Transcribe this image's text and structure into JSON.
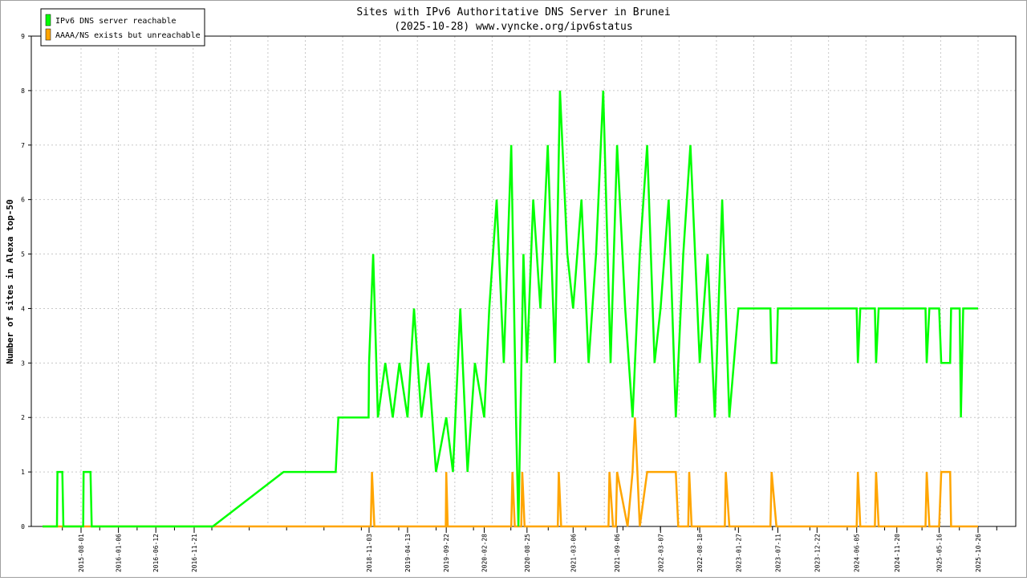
{
  "chart_data": {
    "type": "line",
    "title": "Sites with IPv6 Authoritative DNS Server in Brunei",
    "subtitle": "(2025-10-28) www.vyncke.org/ipv6status",
    "ylabel": "Number of sites in Alexa top-50",
    "ylim": [
      0,
      9
    ],
    "yticks": [
      "0",
      "1",
      "2",
      "3",
      "4",
      "5",
      "6",
      "7",
      "8",
      "9"
    ],
    "x_ticks": [
      "2015-08-01",
      "2016-01-06",
      "2016-06-12",
      "2016-11-21",
      "2018-11-03",
      "2019-04-13",
      "2019-09-22",
      "2020-02-28",
      "2020-08-25",
      "2021-03-06",
      "2021-09-06",
      "2022-03-07",
      "2022-08-18",
      "2023-01-27",
      "2023-07-11",
      "2023-12-22",
      "2024-06-05",
      "2024-11-20",
      "2025-05-16",
      "2025-10-26"
    ],
    "grid": true,
    "legend_position": "top-left",
    "series": [
      {
        "name": "IPv6 DNS server reachable",
        "color": "#00ff00",
        "points": [
          [
            "2015-02-01",
            0
          ],
          [
            "2015-04-10",
            0
          ],
          [
            "2015-04-12",
            1
          ],
          [
            "2015-05-05",
            1
          ],
          [
            "2015-05-10",
            0
          ],
          [
            "2015-08-10",
            0
          ],
          [
            "2015-08-12",
            1
          ],
          [
            "2015-09-10",
            1
          ],
          [
            "2015-09-15",
            0
          ],
          [
            "2017-02-05",
            0
          ],
          [
            "2017-11-20",
            1
          ],
          [
            "2018-06-20",
            1
          ],
          [
            "2018-07-01",
            2
          ],
          [
            "2018-11-01",
            2
          ],
          [
            "2018-11-03",
            3
          ],
          [
            "2018-11-20",
            5
          ],
          [
            "2018-12-10",
            2
          ],
          [
            "2019-01-10",
            3
          ],
          [
            "2019-02-10",
            2
          ],
          [
            "2019-03-10",
            3
          ],
          [
            "2019-04-13",
            2
          ],
          [
            "2019-05-10",
            4
          ],
          [
            "2019-06-10",
            2
          ],
          [
            "2019-07-10",
            3
          ],
          [
            "2019-08-10",
            1
          ],
          [
            "2019-09-22",
            2
          ],
          [
            "2019-10-20",
            1
          ],
          [
            "2019-11-20",
            4
          ],
          [
            "2019-12-20",
            1
          ],
          [
            "2020-01-20",
            3
          ],
          [
            "2020-02-28",
            2
          ],
          [
            "2020-03-20",
            4
          ],
          [
            "2020-04-20",
            6
          ],
          [
            "2020-05-20",
            3
          ],
          [
            "2020-06-20",
            7
          ],
          [
            "2020-07-10",
            2
          ],
          [
            "2020-07-20",
            0
          ],
          [
            "2020-08-10",
            5
          ],
          [
            "2020-08-25",
            3
          ],
          [
            "2020-09-20",
            6
          ],
          [
            "2020-10-20",
            4
          ],
          [
            "2020-11-20",
            7
          ],
          [
            "2020-12-20",
            3
          ],
          [
            "2021-01-10",
            8
          ],
          [
            "2021-02-10",
            5
          ],
          [
            "2021-03-06",
            4
          ],
          [
            "2021-04-10",
            6
          ],
          [
            "2021-05-10",
            3
          ],
          [
            "2021-06-10",
            5
          ],
          [
            "2021-07-10",
            8
          ],
          [
            "2021-08-10",
            3
          ],
          [
            "2021-09-06",
            7
          ],
          [
            "2021-10-10",
            4
          ],
          [
            "2021-11-10",
            2
          ],
          [
            "2021-12-10",
            5
          ],
          [
            "2022-01-10",
            7
          ],
          [
            "2022-02-10",
            3
          ],
          [
            "2022-03-07",
            4
          ],
          [
            "2022-04-10",
            6
          ],
          [
            "2022-05-10",
            2
          ],
          [
            "2022-06-10",
            5
          ],
          [
            "2022-07-10",
            7
          ],
          [
            "2022-08-18",
            3
          ],
          [
            "2022-09-20",
            5
          ],
          [
            "2022-10-20",
            2
          ],
          [
            "2022-11-20",
            6
          ],
          [
            "2022-12-20",
            2
          ],
          [
            "2023-01-27",
            4
          ],
          [
            "2023-06-10",
            4
          ],
          [
            "2023-06-15",
            3
          ],
          [
            "2023-07-05",
            3
          ],
          [
            "2023-07-11",
            4
          ],
          [
            "2024-06-05",
            4
          ],
          [
            "2024-06-10",
            3
          ],
          [
            "2024-06-20",
            4
          ],
          [
            "2024-08-20",
            4
          ],
          [
            "2024-08-25",
            3
          ],
          [
            "2024-09-05",
            4
          ],
          [
            "2025-03-20",
            4
          ],
          [
            "2025-03-25",
            3
          ],
          [
            "2025-04-05",
            4
          ],
          [
            "2025-05-16",
            4
          ],
          [
            "2025-05-25",
            3
          ],
          [
            "2025-07-01",
            3
          ],
          [
            "2025-07-05",
            4
          ],
          [
            "2025-08-10",
            4
          ],
          [
            "2025-08-15",
            2
          ],
          [
            "2025-08-25",
            4
          ],
          [
            "2025-10-26",
            4
          ]
        ]
      },
      {
        "name": "AAAA/NS exists but unreachable",
        "color": "#ffa500",
        "points": [
          [
            "2015-02-01",
            0
          ],
          [
            "2018-11-10",
            0
          ],
          [
            "2018-11-15",
            1
          ],
          [
            "2018-11-25",
            0
          ],
          [
            "2019-09-20",
            0
          ],
          [
            "2019-09-22",
            1
          ],
          [
            "2019-09-28",
            0
          ],
          [
            "2020-06-20",
            0
          ],
          [
            "2020-06-25",
            1
          ],
          [
            "2020-07-05",
            0
          ],
          [
            "2020-08-01",
            0
          ],
          [
            "2020-08-05",
            1
          ],
          [
            "2020-08-15",
            0
          ],
          [
            "2021-01-01",
            0
          ],
          [
            "2021-01-05",
            1
          ],
          [
            "2021-01-15",
            0
          ],
          [
            "2021-08-01",
            0
          ],
          [
            "2021-08-05",
            1
          ],
          [
            "2021-08-20",
            0
          ],
          [
            "2021-09-01",
            0
          ],
          [
            "2021-09-06",
            1
          ],
          [
            "2021-10-20",
            0
          ],
          [
            "2021-11-10",
            1
          ],
          [
            "2021-11-20",
            2
          ],
          [
            "2021-12-10",
            0
          ],
          [
            "2022-01-10",
            1
          ],
          [
            "2022-05-10",
            1
          ],
          [
            "2022-05-20",
            0
          ],
          [
            "2022-07-01",
            0
          ],
          [
            "2022-07-05",
            1
          ],
          [
            "2022-07-15",
            0
          ],
          [
            "2022-12-01",
            0
          ],
          [
            "2022-12-05",
            1
          ],
          [
            "2022-12-20",
            0
          ],
          [
            "2023-06-10",
            0
          ],
          [
            "2023-06-15",
            1
          ],
          [
            "2023-07-05",
            0
          ],
          [
            "2024-06-05",
            0
          ],
          [
            "2024-06-10",
            1
          ],
          [
            "2024-06-20",
            0
          ],
          [
            "2024-08-20",
            0
          ],
          [
            "2024-08-25",
            1
          ],
          [
            "2024-09-05",
            0
          ],
          [
            "2025-03-20",
            0
          ],
          [
            "2025-03-25",
            1
          ],
          [
            "2025-04-05",
            0
          ],
          [
            "2025-05-16",
            0
          ],
          [
            "2025-05-25",
            1
          ],
          [
            "2025-07-01",
            1
          ],
          [
            "2025-07-05",
            0
          ],
          [
            "2025-10-26",
            0
          ]
        ]
      }
    ]
  }
}
